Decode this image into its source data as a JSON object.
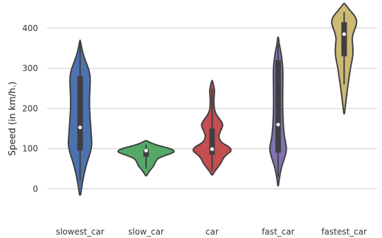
{
  "chart_data": {
    "type": "violin",
    "title": "",
    "xlabel": "",
    "ylabel": "Speed (in km/h.)",
    "ylim": [
      -45,
      470
    ],
    "yticks": [
      0,
      100,
      200,
      300,
      400
    ],
    "grid": "horizontal",
    "categories": [
      "slowest_car",
      "slow_car",
      "car",
      "fast_car",
      "fastest_car"
    ],
    "series": [
      {
        "category": "slowest_car",
        "color": "#4c72b0",
        "min": -15,
        "max": 370,
        "q1": 95,
        "median": 153,
        "q3": 280,
        "whisker_low": 20,
        "whisker_high": 360,
        "density": [
          [
            -15,
            0.02
          ],
          [
            0,
            0.05
          ],
          [
            30,
            0.12
          ],
          [
            60,
            0.22
          ],
          [
            90,
            0.36
          ],
          [
            110,
            0.42
          ],
          [
            130,
            0.4
          ],
          [
            160,
            0.37
          ],
          [
            190,
            0.34
          ],
          [
            220,
            0.33
          ],
          [
            250,
            0.35
          ],
          [
            280,
            0.36
          ],
          [
            300,
            0.3
          ],
          [
            320,
            0.18
          ],
          [
            345,
            0.07
          ],
          [
            370,
            0.01
          ]
        ]
      },
      {
        "category": "slow_car",
        "color": "#55a868",
        "min": 33,
        "max": 120,
        "q1": 80,
        "median": 95,
        "q3": 97,
        "whisker_low": 50,
        "whisker_high": 110,
        "density": [
          [
            33,
            0.02
          ],
          [
            40,
            0.08
          ],
          [
            48,
            0.16
          ],
          [
            56,
            0.26
          ],
          [
            62,
            0.3
          ],
          [
            68,
            0.34
          ],
          [
            75,
            0.4
          ],
          [
            82,
            0.62
          ],
          [
            88,
            0.88
          ],
          [
            92,
            1.0
          ],
          [
            97,
            0.96
          ],
          [
            103,
            0.72
          ],
          [
            108,
            0.42
          ],
          [
            114,
            0.18
          ],
          [
            120,
            0.02
          ]
        ]
      },
      {
        "category": "car",
        "color": "#c44e52",
        "min": 35,
        "max": 270,
        "q1": 85,
        "median": 99,
        "q3": 150,
        "whisker_low": 45,
        "whisker_high": 250,
        "density": [
          [
            35,
            0.02
          ],
          [
            45,
            0.1
          ],
          [
            55,
            0.22
          ],
          [
            65,
            0.32
          ],
          [
            75,
            0.38
          ],
          [
            85,
            0.5
          ],
          [
            95,
            0.7
          ],
          [
            105,
            0.6
          ],
          [
            115,
            0.32
          ],
          [
            130,
            0.22
          ],
          [
            145,
            0.3
          ],
          [
            160,
            0.4
          ],
          [
            175,
            0.25
          ],
          [
            190,
            0.1
          ],
          [
            210,
            0.06
          ],
          [
            230,
            0.07
          ],
          [
            245,
            0.09
          ],
          [
            258,
            0.05
          ],
          [
            270,
            0.01
          ]
        ]
      },
      {
        "category": "fast_car",
        "color": "#8172b2",
        "min": 8,
        "max": 378,
        "q1": 90,
        "median": 160,
        "q3": 320,
        "whisker_low": 30,
        "whisker_high": 360,
        "density": [
          [
            8,
            0.01
          ],
          [
            30,
            0.05
          ],
          [
            55,
            0.12
          ],
          [
            75,
            0.22
          ],
          [
            95,
            0.3
          ],
          [
            110,
            0.28
          ],
          [
            130,
            0.22
          ],
          [
            160,
            0.18
          ],
          [
            200,
            0.16
          ],
          [
            240,
            0.16
          ],
          [
            280,
            0.17
          ],
          [
            310,
            0.16
          ],
          [
            340,
            0.1
          ],
          [
            360,
            0.04
          ],
          [
            378,
            0.01
          ]
        ]
      },
      {
        "category": "fastest_car",
        "color": "#ccb974",
        "min": 187,
        "max": 462,
        "q1": 330,
        "median": 385,
        "q3": 415,
        "whisker_low": 260,
        "whisker_high": 440,
        "density": [
          [
            187,
            0.01
          ],
          [
            210,
            0.05
          ],
          [
            240,
            0.1
          ],
          [
            270,
            0.16
          ],
          [
            300,
            0.22
          ],
          [
            320,
            0.28
          ],
          [
            340,
            0.32
          ],
          [
            360,
            0.3
          ],
          [
            375,
            0.28
          ],
          [
            390,
            0.33
          ],
          [
            405,
            0.42
          ],
          [
            418,
            0.45
          ],
          [
            430,
            0.38
          ],
          [
            440,
            0.26
          ],
          [
            450,
            0.14
          ],
          [
            462,
            0.01
          ]
        ]
      }
    ]
  }
}
